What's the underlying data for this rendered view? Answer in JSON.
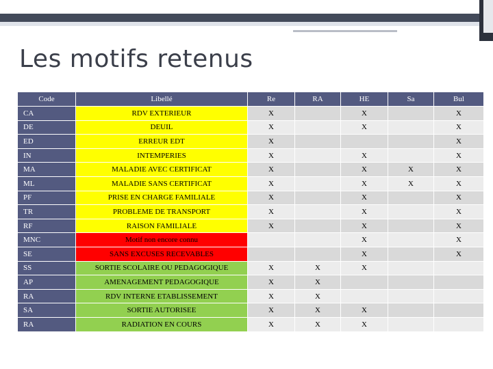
{
  "title": "Les motifs retenus",
  "colors": {
    "header": "#535a80",
    "yellow": "#ffff00",
    "red": "#ff0000",
    "green": "#92d050",
    "stripe_dark": "#d9d9d9",
    "stripe_light": "#ececec"
  },
  "table": {
    "headers": [
      "Code",
      "Libellé",
      "Re",
      "RA",
      "HE",
      "Sa",
      "Bul"
    ],
    "rows": [
      {
        "code": "CA",
        "label": "RDV EXTERIEUR",
        "color": "yellow",
        "marks": [
          "X",
          "",
          "X",
          "",
          "X"
        ]
      },
      {
        "code": "DE",
        "label": "DEUIL",
        "color": "yellow",
        "marks": [
          "X",
          "",
          "X",
          "",
          "X"
        ]
      },
      {
        "code": "ED",
        "label": "ERREUR EDT",
        "color": "yellow",
        "marks": [
          "X",
          "",
          "",
          "",
          "X"
        ]
      },
      {
        "code": "IN",
        "label": "INTEMPERIES",
        "color": "yellow",
        "marks": [
          "X",
          "",
          "X",
          "",
          "X"
        ]
      },
      {
        "code": "MA",
        "label": "MALADIE AVEC CERTIFICAT",
        "color": "yellow",
        "marks": [
          "X",
          "",
          "X",
          "X",
          "X"
        ]
      },
      {
        "code": "ML",
        "label": "MALADIE SANS CERTIFICAT",
        "color": "yellow",
        "marks": [
          "X",
          "",
          "X",
          "X",
          "X"
        ]
      },
      {
        "code": "PF",
        "label": "PRISE EN CHARGE FAMILIALE",
        "color": "yellow",
        "marks": [
          "X",
          "",
          "X",
          "",
          "X"
        ]
      },
      {
        "code": "TR",
        "label": "PROBLEME DE TRANSPORT",
        "color": "yellow",
        "marks": [
          "X",
          "",
          "X",
          "",
          "X"
        ]
      },
      {
        "code": "RF",
        "label": "RAISON FAMILIALE",
        "color": "yellow",
        "marks": [
          "X",
          "",
          "X",
          "",
          "X"
        ]
      },
      {
        "code": "MNC",
        "label": "Motif non encore connu",
        "color": "red",
        "marks": [
          "",
          "",
          "X",
          "",
          "X"
        ]
      },
      {
        "code": "SE",
        "label": "SANS EXCUSES RECEVABLES",
        "color": "red",
        "marks": [
          "",
          "",
          "X",
          "",
          "X"
        ]
      },
      {
        "code": "SS",
        "label": "SORTIE SCOLAIRE OU PEDAGOGIQUE",
        "color": "green",
        "marks": [
          "X",
          "X",
          "X",
          "",
          ""
        ]
      },
      {
        "code": "AP",
        "label": "AMENAGEMENT PEDAGOGIQUE",
        "color": "green",
        "marks": [
          "X",
          "X",
          "",
          "",
          ""
        ]
      },
      {
        "code": "RA",
        "label": "RDV INTERNE ETABLISSEMENT",
        "color": "green",
        "marks": [
          "X",
          "X",
          "",
          "",
          ""
        ]
      },
      {
        "code": "SA",
        "label": "SORTIE AUTORISEE",
        "color": "green",
        "marks": [
          "X",
          "X",
          "X",
          "",
          ""
        ]
      },
      {
        "code": "RA",
        "label": "RADIATION EN COURS",
        "color": "green",
        "marks": [
          "X",
          "X",
          "X",
          "",
          ""
        ]
      }
    ]
  }
}
